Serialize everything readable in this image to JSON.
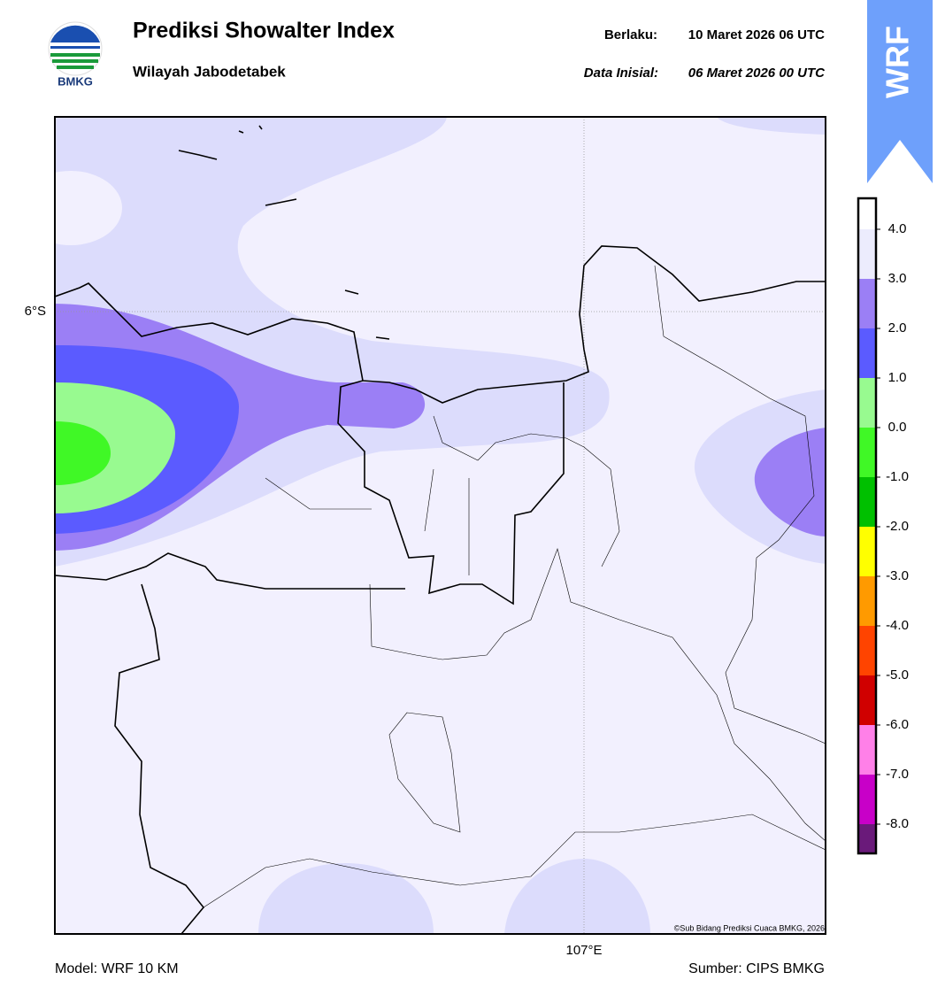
{
  "header": {
    "title": "Prediksi Showalter Index",
    "subtitle": "Wilayah Jabodetabek",
    "valid_label": "Berlaku:",
    "valid": "10 Maret 2026 06 UTC",
    "init_label": "Data Inisial:",
    "init": "06 Maret 2026 00 UTC",
    "logo_text": "BMKG",
    "badge": "WRF"
  },
  "map": {
    "lat_label": "6°S",
    "lon_label": "107°E",
    "credit": "©Sub Bidang Prediksi Cuaca BMKG, 2026"
  },
  "colorbar": {
    "ticks": [
      {
        "value": 4,
        "label": "4.0"
      },
      {
        "value": 3,
        "label": "3.0"
      },
      {
        "value": 2,
        "label": "2.0"
      },
      {
        "value": 1,
        "label": "1.0"
      },
      {
        "value": 0,
        "label": "0.0"
      },
      {
        "value": -1,
        "label": "-1.0"
      },
      {
        "value": -2,
        "label": "-2.0"
      },
      {
        "value": -3,
        "label": "-3.0"
      },
      {
        "value": -4,
        "label": "-4.0"
      },
      {
        "value": -5,
        "label": "-5.0"
      },
      {
        "value": -6,
        "label": "-6.0"
      },
      {
        "value": -7,
        "label": "-7.0"
      },
      {
        "value": -8,
        "label": "-8.0"
      }
    ],
    "colors": [
      "#ffffff",
      "#ececfd",
      "#9b7ff5",
      "#5b5bff",
      "#98fa90",
      "#40f826",
      "#00c000",
      "#ffff00",
      "#ff9a00",
      "#ff4400",
      "#d00000",
      "#ff80e8",
      "#c800c8",
      "#6a1a7a"
    ]
  },
  "footer": {
    "model": "Model: WRF 10 KM",
    "source": "Sumber: CIPS BMKG"
  }
}
